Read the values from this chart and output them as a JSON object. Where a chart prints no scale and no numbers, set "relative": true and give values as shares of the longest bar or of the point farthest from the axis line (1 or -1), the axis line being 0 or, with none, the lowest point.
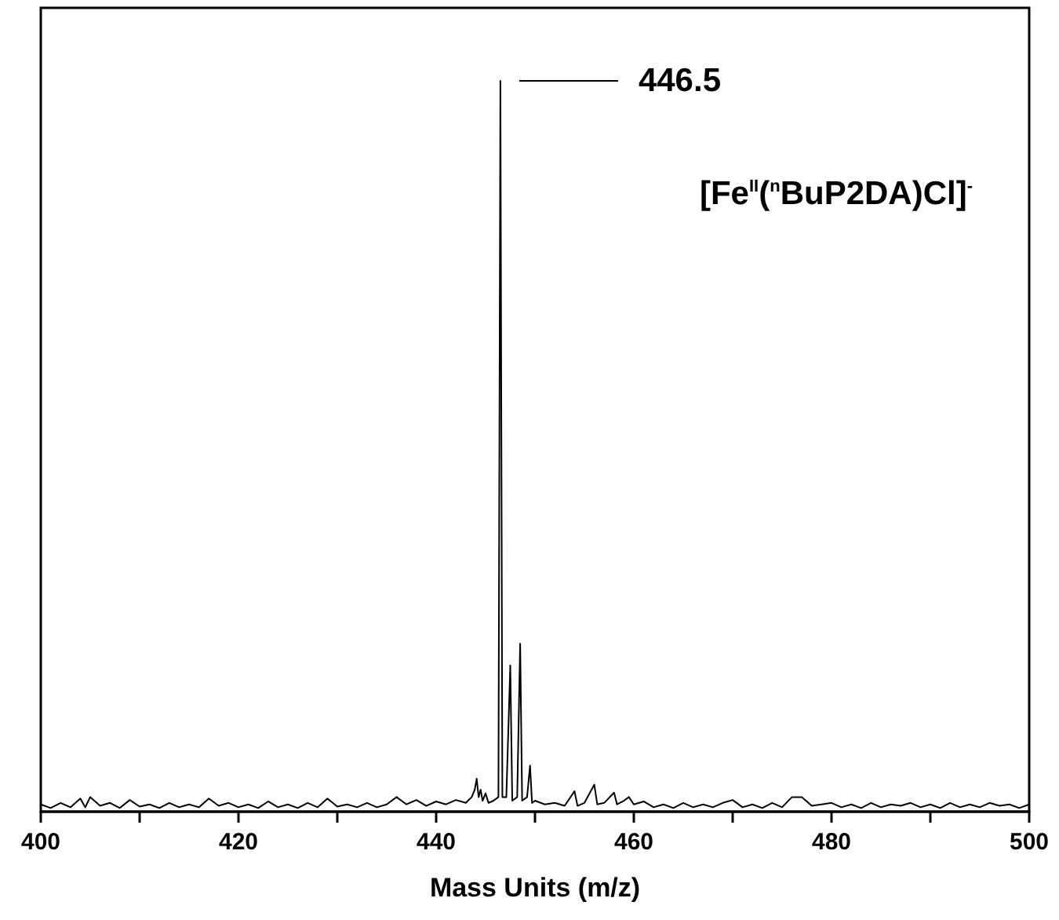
{
  "chart_data": {
    "type": "line",
    "relative": true,
    "xlabel": "Mass Units (m/z)",
    "xlim": [
      400,
      500
    ],
    "xticks": [
      400,
      {
        "value": 410,
        "label": null
      },
      420,
      {
        "value": 430,
        "label": null
      },
      440,
      {
        "value": 450,
        "label": null
      },
      460,
      {
        "value": 470,
        "label": null
      },
      480,
      {
        "value": 490,
        "label": null
      },
      500
    ],
    "annotations": [
      "446.5",
      "[Fe$^{II}$($^{n}$BuP2DA)Cl]$^{-}$"
    ],
    "marker": "none",
    "grid": false,
    "x": [
      400,
      401,
      402,
      403,
      404,
      404.5,
      405,
      406,
      407,
      408,
      409,
      410,
      411,
      412,
      413,
      414,
      415,
      416,
      417,
      418,
      419,
      420,
      421,
      422,
      423,
      424,
      425,
      426,
      427,
      428,
      429,
      430,
      431,
      432,
      433,
      434,
      435,
      436,
      437,
      438,
      439,
      440,
      441,
      442,
      443,
      443.6,
      443.9,
      444.1,
      444.3,
      444.5,
      444.7,
      445,
      445.3,
      445.8,
      446.3,
      446.5,
      446.7,
      447.1,
      447.5,
      447.7,
      448.2,
      448.5,
      448.7,
      449.2,
      449.5,
      449.7,
      450,
      451,
      452,
      453,
      454,
      454.3,
      455,
      456,
      456.3,
      457,
      458,
      458.3,
      459,
      459.5,
      460,
      461,
      462,
      463,
      464,
      465,
      466,
      467,
      468,
      469,
      470,
      471,
      472,
      473,
      474,
      475,
      476,
      477,
      478,
      479,
      480,
      481,
      482,
      483,
      484,
      485,
      486,
      487,
      488,
      489,
      490,
      491,
      492,
      493,
      494,
      495,
      496,
      497,
      498,
      499,
      500
    ],
    "series": [
      {
        "color": "#000000",
        "values": [
          0.01,
          0.005,
          0.012,
          0.006,
          0.018,
          0.006,
          0.02,
          0.008,
          0.012,
          0.005,
          0.016,
          0.007,
          0.01,
          0.005,
          0.012,
          0.006,
          0.01,
          0.006,
          0.018,
          0.008,
          0.012,
          0.006,
          0.01,
          0.005,
          0.014,
          0.006,
          0.01,
          0.005,
          0.012,
          0.006,
          0.018,
          0.007,
          0.01,
          0.006,
          0.012,
          0.006,
          0.01,
          0.02,
          0.01,
          0.016,
          0.008,
          0.014,
          0.01,
          0.016,
          0.012,
          0.02,
          0.03,
          0.045,
          0.02,
          0.03,
          0.015,
          0.025,
          0.012,
          0.015,
          0.02,
          1,
          0.02,
          0.02,
          0.2,
          0.015,
          0.02,
          0.23,
          0.015,
          0.02,
          0.063,
          0.012,
          0.015,
          0.01,
          0.012,
          0.008,
          0.028,
          0.008,
          0.012,
          0.037,
          0.01,
          0.012,
          0.026,
          0.01,
          0.015,
          0.02,
          0.01,
          0.014,
          0.006,
          0.01,
          0.005,
          0.012,
          0.006,
          0.01,
          0.006,
          0.012,
          0.016,
          0.006,
          0.01,
          0.005,
          0.012,
          0.006,
          0.02,
          0.02,
          0.008,
          0.01,
          0.012,
          0.006,
          0.01,
          0.005,
          0.012,
          0.006,
          0.01,
          0.008,
          0.012,
          0.006,
          0.01,
          0.005,
          0.012,
          0.006,
          0.01,
          0.006,
          0.012,
          0.008,
          0.01,
          0.005,
          0.01
        ]
      }
    ]
  }
}
